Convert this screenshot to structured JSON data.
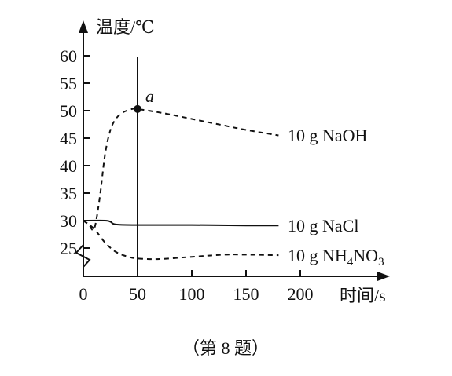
{
  "chart_data": {
    "type": "line",
    "ylabel": "温度/℃",
    "xlabel": "时间/s",
    "x_ticks": [
      0,
      50,
      100,
      150,
      200
    ],
    "y_ticks": [
      25,
      30,
      35,
      40,
      45,
      50,
      55,
      60
    ],
    "y_axis_break": true,
    "xlim": [
      0,
      200
    ],
    "ylim": [
      22,
      60
    ],
    "vertical_reference_x": 50,
    "annotation": {
      "label": "a",
      "x": 50,
      "y": 50.3
    },
    "series": [
      {
        "name": "10 g NaOH",
        "style": "dashed",
        "x": [
          0,
          5,
          10,
          15,
          20,
          25,
          30,
          35,
          40,
          45,
          50,
          75,
          100,
          125,
          150,
          180
        ],
        "y": [
          30,
          29.3,
          28.5,
          34,
          42,
          46.5,
          48.5,
          49.5,
          50,
          50.3,
          50.3,
          49.5,
          48.5,
          47.5,
          46.5,
          45.5
        ]
      },
      {
        "name": "10 g NaCl",
        "style": "solid",
        "x": [
          0,
          20,
          25,
          30,
          50,
          100,
          150,
          180
        ],
        "y": [
          30,
          30,
          29.8,
          29.3,
          29.2,
          29.2,
          29.1,
          29.1
        ]
      },
      {
        "name": "10 g NH4NO3",
        "style": "dashed",
        "x": [
          0,
          10,
          20,
          30,
          40,
          50,
          70,
          100,
          130,
          150,
          180
        ],
        "y": [
          30,
          28.5,
          26,
          24.3,
          23.5,
          23.1,
          23,
          23.4,
          23.8,
          23.8,
          23.7
        ]
      }
    ]
  },
  "series_labels": {
    "naoh": "10 g NaOH",
    "nacl": "10 g NaCl",
    "nh4no3_prefix": "10 g NH",
    "nh4no3_sub1": "4",
    "nh4no3_mid": "NO",
    "nh4no3_sub2": "3"
  },
  "caption": "（第 8 题）"
}
